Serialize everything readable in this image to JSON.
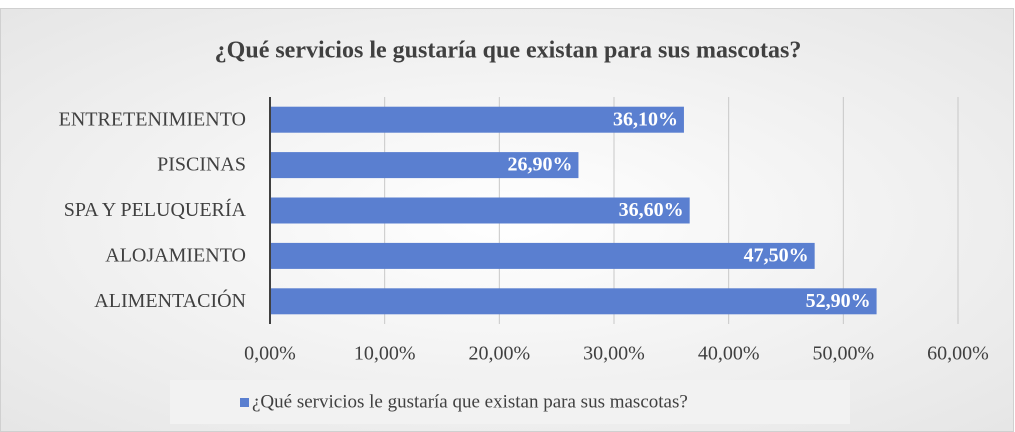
{
  "chart_data": {
    "type": "hbar",
    "title": "¿Qué servicios le gustaría que existan para sus mascotas?",
    "categories": [
      "ENTRETENIMIENTO",
      "PISCINAS",
      "SPA Y PELUQUERÍA",
      "ALOJAMIENTO",
      "ALIMENTACIÓN"
    ],
    "series": [
      {
        "name": "¿Qué servicios le gustaría que existan para sus mascotas?",
        "color": "#5a7fd0",
        "values": [
          36.1,
          26.9,
          36.6,
          47.5,
          52.9
        ],
        "value_labels": [
          "36,10%",
          "26,90%",
          "36,60%",
          "47,50%",
          "52,90%"
        ]
      }
    ],
    "xlim": [
      0,
      60
    ],
    "xticks": [
      {
        "value": 0,
        "label": "0,00%"
      },
      {
        "value": 10,
        "label": "10,00%"
      },
      {
        "value": 20,
        "label": "20,00%"
      },
      {
        "value": 30,
        "label": "30,00%"
      },
      {
        "value": 40,
        "label": "40,00%"
      },
      {
        "value": 50,
        "label": "50,00%"
      },
      {
        "value": 60,
        "label": "60,00%"
      }
    ],
    "grid": true,
    "legend": "bottom"
  }
}
